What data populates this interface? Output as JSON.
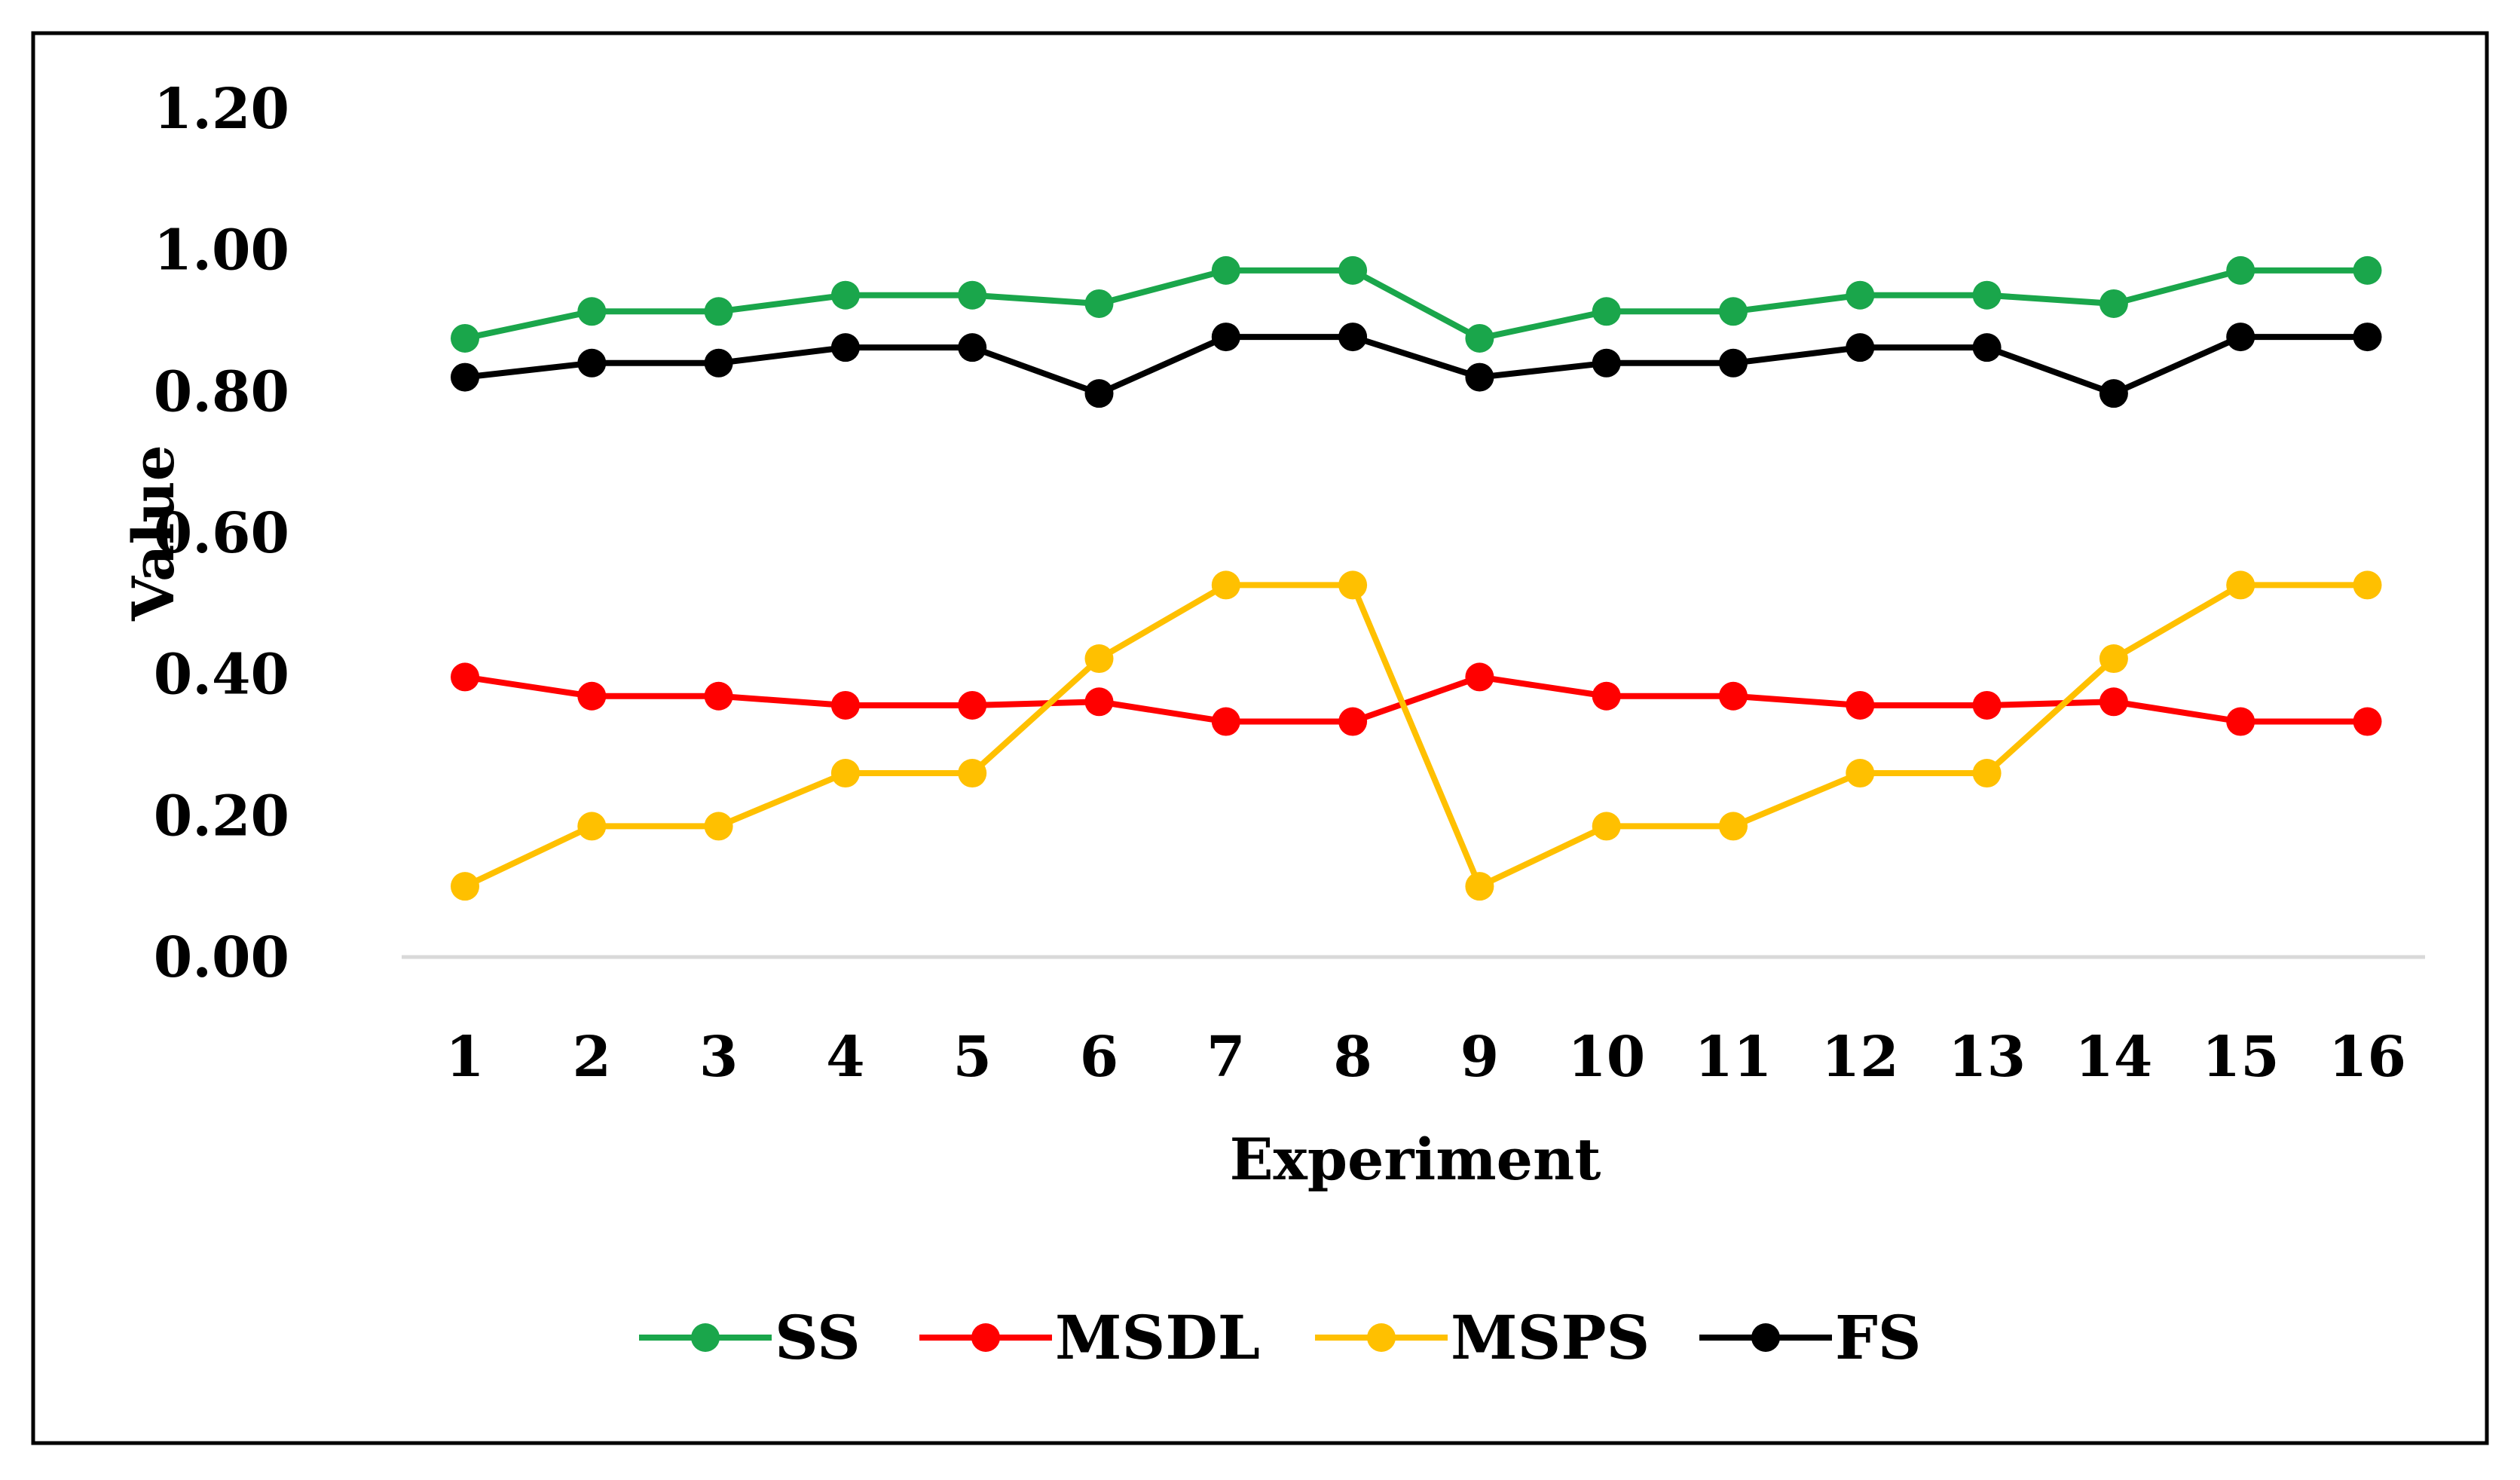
{
  "chart_data": {
    "type": "line",
    "xlabel": "Experiment",
    "ylabel": "Value",
    "x": [
      "1",
      "2",
      "3",
      "4",
      "5",
      "6",
      "7",
      "8",
      "9",
      "10",
      "11",
      "12",
      "13",
      "14",
      "15",
      "16"
    ],
    "y_ticks": [
      "0.00",
      "0.20",
      "0.40",
      "0.60",
      "0.80",
      "1.00",
      "1.20"
    ],
    "ylim": [
      0,
      1.2
    ],
    "grid": false,
    "legend_position": "bottom",
    "series": [
      {
        "name": "SS",
        "color": "#1aa64b",
        "values": [
          0.875,
          0.913,
          0.913,
          0.936,
          0.936,
          0.924,
          0.971,
          0.971,
          0.875,
          0.913,
          0.913,
          0.936,
          0.936,
          0.924,
          0.971,
          0.971
        ]
      },
      {
        "name": "MSDL",
        "color": "#ff0000",
        "values": [
          0.396,
          0.369,
          0.369,
          0.356,
          0.356,
          0.361,
          0.333,
          0.333,
          0.396,
          0.369,
          0.369,
          0.356,
          0.356,
          0.361,
          0.333,
          0.333
        ]
      },
      {
        "name": "MSPS",
        "color": "#ffc000",
        "values": [
          0.1,
          0.185,
          0.185,
          0.26,
          0.26,
          0.422,
          0.526,
          0.526,
          0.1,
          0.185,
          0.185,
          0.26,
          0.26,
          0.422,
          0.526,
          0.526
        ]
      },
      {
        "name": "FS",
        "color": "#000000",
        "values": [
          0.82,
          0.84,
          0.84,
          0.862,
          0.862,
          0.797,
          0.877,
          0.877,
          0.82,
          0.84,
          0.84,
          0.862,
          0.862,
          0.797,
          0.877,
          0.877
        ]
      }
    ]
  }
}
